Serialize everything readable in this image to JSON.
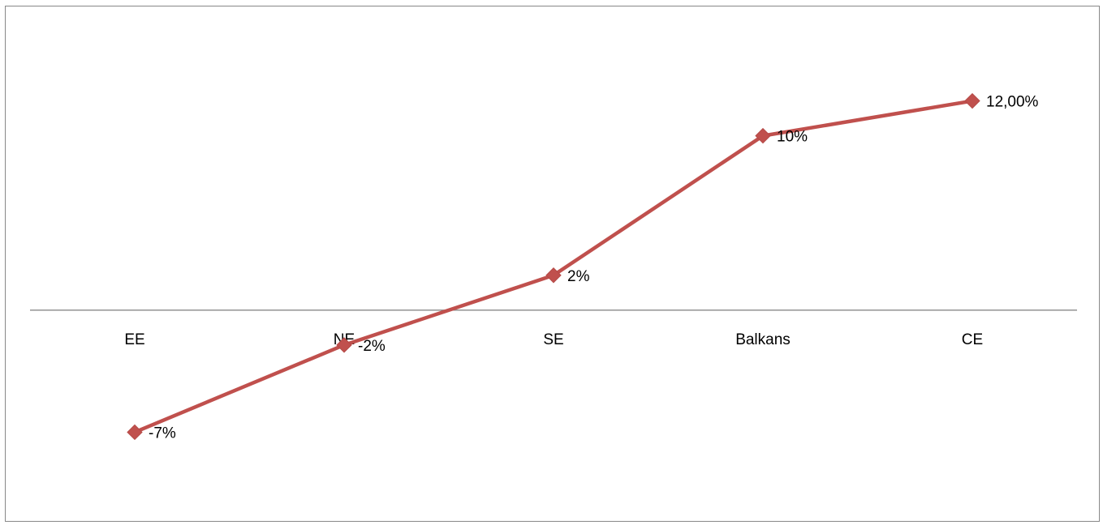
{
  "chart_data": {
    "type": "line",
    "title": "",
    "xlabel": "",
    "ylabel": "",
    "categories": [
      "EE",
      "NE",
      "SE",
      "Balkans",
      "CE"
    ],
    "series": [
      {
        "values": [
          -0.07,
          -0.02,
          0.02,
          0.1,
          0.12
        ],
        "data_labels": [
          "-7%",
          "-2%",
          "2%",
          "10%",
          "12,00%"
        ],
        "color": "#c0504d",
        "marker": "diamond"
      }
    ],
    "ylim": [
      -0.1,
      0.15
    ],
    "grid": false,
    "legend": "none"
  }
}
